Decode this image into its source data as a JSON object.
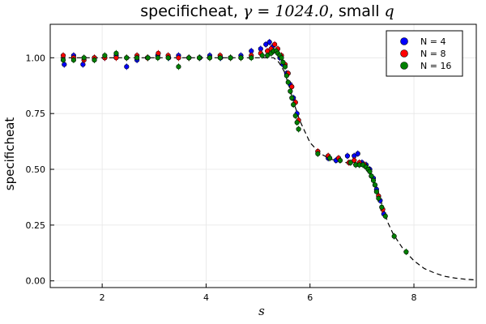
{
  "chart_data": {
    "type": "scatter",
    "title_parts": [
      "specificheat, ",
      "γ = 1024.0",
      ",  small ",
      "q"
    ],
    "xlabel": "s",
    "ylabel": "specificheat",
    "xlim": [
      1.0,
      9.2
    ],
    "ylim": [
      -0.03,
      1.15
    ],
    "xticks": [
      2,
      4,
      6,
      8
    ],
    "xtick_labels": [
      "2",
      "4",
      "6",
      "8"
    ],
    "yticks": [
      0.0,
      0.25,
      0.5,
      0.75,
      1.0
    ],
    "ytick_labels": [
      "0.00",
      "0.25",
      "0.50",
      "0.75",
      "1.00"
    ],
    "grid": true,
    "legend_position": "top-right",
    "reference_curve": {
      "style": "dashed",
      "color": "#000000",
      "x": [
        1.2,
        5.0,
        5.3,
        5.4,
        5.5,
        5.6,
        5.7,
        5.8,
        5.9,
        6.0,
        6.2,
        6.4,
        6.6,
        6.8,
        7.0,
        7.1,
        7.2,
        7.3,
        7.4,
        7.5,
        7.6,
        7.8,
        8.0,
        8.2,
        8.4,
        8.6,
        8.8,
        9.0,
        9.2
      ],
      "y": [
        1.0,
        1.0,
        1.0,
        0.98,
        0.94,
        0.87,
        0.79,
        0.72,
        0.67,
        0.62,
        0.57,
        0.545,
        0.535,
        0.525,
        0.515,
        0.5,
        0.47,
        0.41,
        0.33,
        0.26,
        0.21,
        0.14,
        0.09,
        0.055,
        0.035,
        0.02,
        0.012,
        0.007,
        0.004
      ]
    },
    "series": [
      {
        "name": "N = 4",
        "color": "#0000ff",
        "points": [
          [
            1.27,
            0.97
          ],
          [
            1.45,
            1.01
          ],
          [
            1.63,
            0.97
          ],
          [
            1.85,
            1.0
          ],
          [
            2.05,
            1.0
          ],
          [
            2.27,
            1.01
          ],
          [
            2.47,
            0.96
          ],
          [
            2.67,
            0.99
          ],
          [
            2.88,
            1.0
          ],
          [
            3.07,
            1.01
          ],
          [
            3.28,
            1.0
          ],
          [
            3.47,
            1.01
          ],
          [
            3.67,
            1.0
          ],
          [
            3.88,
            1.0
          ],
          [
            4.07,
            1.01
          ],
          [
            4.28,
            1.0
          ],
          [
            4.47,
            1.0
          ],
          [
            4.67,
            1.01
          ],
          [
            4.87,
            1.03
          ],
          [
            5.05,
            1.04
          ],
          [
            5.15,
            1.06
          ],
          [
            5.22,
            1.07
          ],
          [
            5.28,
            1.05
          ],
          [
            5.35,
            1.03
          ],
          [
            5.42,
            1.0
          ],
          [
            5.48,
            0.97
          ],
          [
            5.55,
            0.93
          ],
          [
            5.62,
            0.88
          ],
          [
            5.68,
            0.82
          ],
          [
            5.75,
            0.75
          ],
          [
            6.35,
            0.55
          ],
          [
            6.5,
            0.54
          ],
          [
            6.72,
            0.56
          ],
          [
            6.85,
            0.56
          ],
          [
            6.92,
            0.57
          ],
          [
            7.0,
            0.53
          ],
          [
            7.08,
            0.52
          ],
          [
            7.15,
            0.5
          ],
          [
            7.22,
            0.46
          ],
          [
            7.28,
            0.41
          ],
          [
            7.35,
            0.36
          ],
          [
            7.42,
            0.3
          ]
        ]
      },
      {
        "name": "N = 8",
        "color": "#ff0000",
        "points": [
          [
            1.25,
            1.01
          ],
          [
            1.45,
            1.0
          ],
          [
            1.65,
            0.99
          ],
          [
            1.85,
            1.0
          ],
          [
            2.05,
            1.0
          ],
          [
            2.27,
            1.0
          ],
          [
            2.47,
            1.0
          ],
          [
            2.67,
            1.01
          ],
          [
            2.87,
            1.0
          ],
          [
            3.08,
            1.02
          ],
          [
            3.27,
            1.01
          ],
          [
            3.47,
            1.0
          ],
          [
            3.67,
            1.0
          ],
          [
            3.87,
            1.0
          ],
          [
            4.07,
            1.0
          ],
          [
            4.27,
            1.01
          ],
          [
            4.47,
            1.0
          ],
          [
            4.67,
            1.0
          ],
          [
            4.87,
            1.01
          ],
          [
            5.05,
            1.02
          ],
          [
            5.18,
            1.03
          ],
          [
            5.25,
            1.04
          ],
          [
            5.32,
            1.06
          ],
          [
            5.38,
            1.04
          ],
          [
            5.45,
            1.01
          ],
          [
            5.52,
            0.97
          ],
          [
            5.58,
            0.93
          ],
          [
            5.65,
            0.87
          ],
          [
            5.72,
            0.8
          ],
          [
            5.78,
            0.72
          ],
          [
            6.15,
            0.58
          ],
          [
            6.35,
            0.56
          ],
          [
            6.55,
            0.55
          ],
          [
            6.75,
            0.53
          ],
          [
            6.85,
            0.54
          ],
          [
            6.95,
            0.53
          ],
          [
            7.05,
            0.52
          ],
          [
            7.12,
            0.5
          ],
          [
            7.18,
            0.47
          ],
          [
            7.25,
            0.43
          ],
          [
            7.32,
            0.38
          ],
          [
            7.4,
            0.32
          ]
        ]
      },
      {
        "name": "N = 16",
        "color": "#008000",
        "points": [
          [
            1.25,
            0.99
          ],
          [
            1.45,
            0.99
          ],
          [
            1.65,
            1.0
          ],
          [
            1.85,
            0.99
          ],
          [
            2.05,
            1.01
          ],
          [
            2.27,
            1.02
          ],
          [
            2.47,
            1.0
          ],
          [
            2.67,
            1.0
          ],
          [
            2.88,
            1.0
          ],
          [
            3.07,
            1.0
          ],
          [
            3.27,
            1.0
          ],
          [
            3.47,
            0.96
          ],
          [
            3.67,
            1.0
          ],
          [
            3.87,
            1.0
          ],
          [
            4.07,
            1.0
          ],
          [
            4.27,
            1.0
          ],
          [
            4.47,
            1.0
          ],
          [
            4.67,
            1.0
          ],
          [
            4.87,
            1.0
          ],
          [
            5.08,
            1.01
          ],
          [
            5.18,
            1.01
          ],
          [
            5.25,
            1.02
          ],
          [
            5.3,
            1.03
          ],
          [
            5.35,
            1.03
          ],
          [
            5.38,
            1.02
          ],
          [
            5.42,
            1.01
          ],
          [
            5.45,
            1.0
          ],
          [
            5.48,
            0.98
          ],
          [
            5.52,
            0.96
          ],
          [
            5.55,
            0.92
          ],
          [
            5.58,
            0.89
          ],
          [
            5.62,
            0.85
          ],
          [
            5.65,
            0.82
          ],
          [
            5.68,
            0.79
          ],
          [
            5.72,
            0.74
          ],
          [
            5.75,
            0.71
          ],
          [
            5.78,
            0.68
          ],
          [
            6.15,
            0.57
          ],
          [
            6.38,
            0.55
          ],
          [
            6.58,
            0.54
          ],
          [
            6.78,
            0.53
          ],
          [
            6.88,
            0.52
          ],
          [
            6.95,
            0.52
          ],
          [
            7.02,
            0.52
          ],
          [
            7.08,
            0.51
          ],
          [
            7.12,
            0.5
          ],
          [
            7.15,
            0.49
          ],
          [
            7.18,
            0.47
          ],
          [
            7.22,
            0.45
          ],
          [
            7.25,
            0.43
          ],
          [
            7.28,
            0.4
          ],
          [
            7.32,
            0.37
          ],
          [
            7.38,
            0.33
          ],
          [
            7.45,
            0.29
          ],
          [
            7.62,
            0.2
          ],
          [
            7.85,
            0.13
          ]
        ]
      }
    ]
  }
}
